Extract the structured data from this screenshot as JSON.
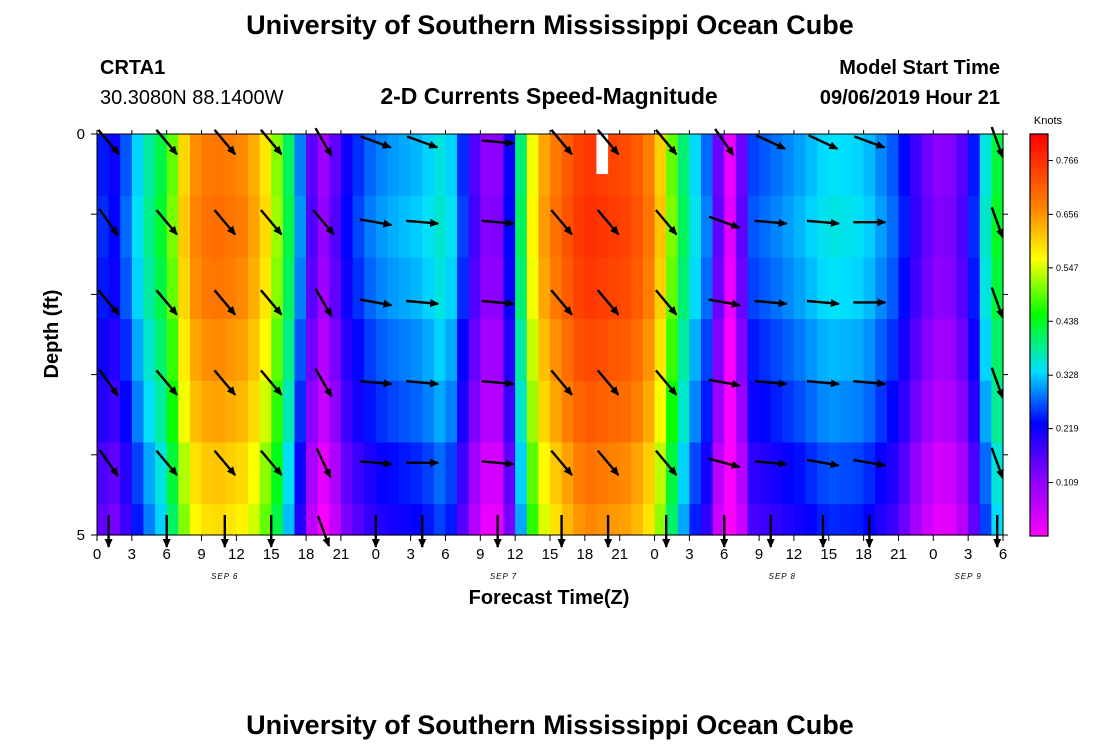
{
  "page": {
    "title_top": "University of Southern Mississippi Ocean Cube",
    "title_bottom": "University of Southern Mississippi Ocean Cube",
    "station_id": "CRTA1",
    "station_coords": "30.3080N 88.1400W",
    "model_start_label": "Model Start Time",
    "model_start_value": "09/06/2019 Hour 21"
  },
  "chart_data": {
    "type": "heatmap",
    "title": "2-D Currents Speed-Magnitude",
    "xlabel": "Forecast Time(Z)",
    "ylabel": "Depth (ft)",
    "x_range_hours": [
      0,
      78
    ],
    "y_range_ft": [
      0,
      5
    ],
    "y_ticks": [
      "0",
      "5"
    ],
    "x_tick_labels": [
      "0",
      "3",
      "6",
      "9",
      "12",
      "15",
      "18",
      "21",
      "0",
      "3",
      "6",
      "9",
      "12",
      "15",
      "18",
      "21",
      "0",
      "3",
      "6",
      "9",
      "12",
      "15",
      "18",
      "21",
      "0",
      "3",
      "6"
    ],
    "date_labels": [
      {
        "text": "SEP 6",
        "hour": 11
      },
      {
        "text": "SEP 7",
        "hour": 35
      },
      {
        "text": "SEP 8",
        "hour": 59
      },
      {
        "text": "SEP 9",
        "hour": 75
      }
    ],
    "colorbar": {
      "unit_label": "Knots",
      "range": [
        0,
        0.82
      ],
      "tick_values": [
        0.766,
        0.656,
        0.547,
        0.438,
        0.328,
        0.219,
        0.109
      ],
      "tick_labels": [
        "0.766",
        "0.656",
        "0.547",
        "0.438",
        "0.328",
        "0.219",
        "0.109"
      ]
    },
    "speed_timeline_knots": [
      {
        "hour": 0,
        "speed": 0.25
      },
      {
        "hour": 1.5,
        "speed": 0.22
      },
      {
        "hour": 2.5,
        "speed": 0.27
      },
      {
        "hour": 3.5,
        "speed": 0.33
      },
      {
        "hour": 4.5,
        "speed": 0.38
      },
      {
        "hour": 6,
        "speed": 0.44
      },
      {
        "hour": 7,
        "speed": 0.55
      },
      {
        "hour": 8,
        "speed": 0.65
      },
      {
        "hour": 10,
        "speed": 0.69
      },
      {
        "hour": 13,
        "speed": 0.66
      },
      {
        "hour": 15,
        "speed": 0.56
      },
      {
        "hour": 16,
        "speed": 0.46
      },
      {
        "hour": 17,
        "speed": 0.36
      },
      {
        "hour": 18,
        "speed": 0.22
      },
      {
        "hour": 19,
        "speed": 0.09
      },
      {
        "hour": 20,
        "speed": 0.1
      },
      {
        "hour": 21,
        "speed": 0.2
      },
      {
        "hour": 23,
        "speed": 0.27
      },
      {
        "hour": 25,
        "speed": 0.3
      },
      {
        "hour": 28,
        "speed": 0.32
      },
      {
        "hour": 30,
        "speed": 0.36
      },
      {
        "hour": 31,
        "speed": 0.3
      },
      {
        "hour": 32,
        "speed": 0.2
      },
      {
        "hour": 33,
        "speed": 0.13
      },
      {
        "hour": 34,
        "speed": 0.09
      },
      {
        "hour": 35,
        "speed": 0.14
      },
      {
        "hour": 36,
        "speed": 0.3
      },
      {
        "hour": 37,
        "speed": 0.5
      },
      {
        "hour": 38,
        "speed": 0.62
      },
      {
        "hour": 40,
        "speed": 0.7
      },
      {
        "hour": 42,
        "speed": 0.76
      },
      {
        "hour": 46,
        "speed": 0.73
      },
      {
        "hour": 48,
        "speed": 0.66
      },
      {
        "hour": 49,
        "speed": 0.55
      },
      {
        "hour": 50,
        "speed": 0.44
      },
      {
        "hour": 51,
        "speed": 0.36
      },
      {
        "hour": 52.5,
        "speed": 0.28
      },
      {
        "hour": 53.5,
        "speed": 0.14
      },
      {
        "hour": 54.5,
        "speed": 0.02
      },
      {
        "hour": 55.5,
        "speed": 0.14
      },
      {
        "hour": 56.5,
        "speed": 0.26
      },
      {
        "hour": 60,
        "speed": 0.3
      },
      {
        "hour": 63,
        "speed": 0.34
      },
      {
        "hour": 66,
        "speed": 0.33
      },
      {
        "hour": 69,
        "speed": 0.26
      },
      {
        "hour": 71,
        "speed": 0.15
      },
      {
        "hour": 73,
        "speed": 0.1
      },
      {
        "hour": 75,
        "speed": 0.18
      },
      {
        "hour": 76,
        "speed": 0.3
      },
      {
        "hour": 77,
        "speed": 0.4
      },
      {
        "hour": 78,
        "speed": 0.45
      }
    ],
    "depth_modifier_knots": [
      0.0,
      0.01,
      0.0,
      -0.02,
      -0.04,
      -0.07,
      -0.09
    ],
    "missing_cell": {
      "hour": 43,
      "depth_ft": [
        0,
        0.5
      ]
    },
    "vector_hours": [
      1,
      6,
      11,
      15,
      19.5,
      24,
      28,
      34.5,
      40,
      44,
      49,
      54,
      58,
      62.5,
      66.5,
      77.5
    ],
    "vector_depths_ft": [
      0.1,
      1.1,
      2.1,
      3.1,
      4.1,
      5.0
    ],
    "vector_directions_deg": [
      [
        140,
        140,
        140,
        140,
        150,
        110,
        110,
        95,
        140,
        140,
        140,
        145,
        115,
        115,
        110,
        160
      ],
      [
        145,
        140,
        140,
        140,
        140,
        100,
        95,
        95,
        140,
        140,
        140,
        110,
        95,
        95,
        90,
        160
      ],
      [
        140,
        140,
        140,
        140,
        150,
        100,
        95,
        95,
        140,
        140,
        140,
        100,
        95,
        95,
        90,
        160
      ],
      [
        145,
        140,
        140,
        140,
        150,
        95,
        95,
        95,
        140,
        140,
        140,
        100,
        95,
        95,
        95,
        160
      ],
      [
        145,
        140,
        140,
        140,
        155,
        95,
        90,
        95,
        140,
        140,
        140,
        105,
        95,
        100,
        100,
        160
      ],
      [
        180,
        180,
        180,
        180,
        160,
        180,
        180,
        180,
        180,
        180,
        180,
        180,
        180,
        180,
        180,
        180
      ]
    ]
  }
}
